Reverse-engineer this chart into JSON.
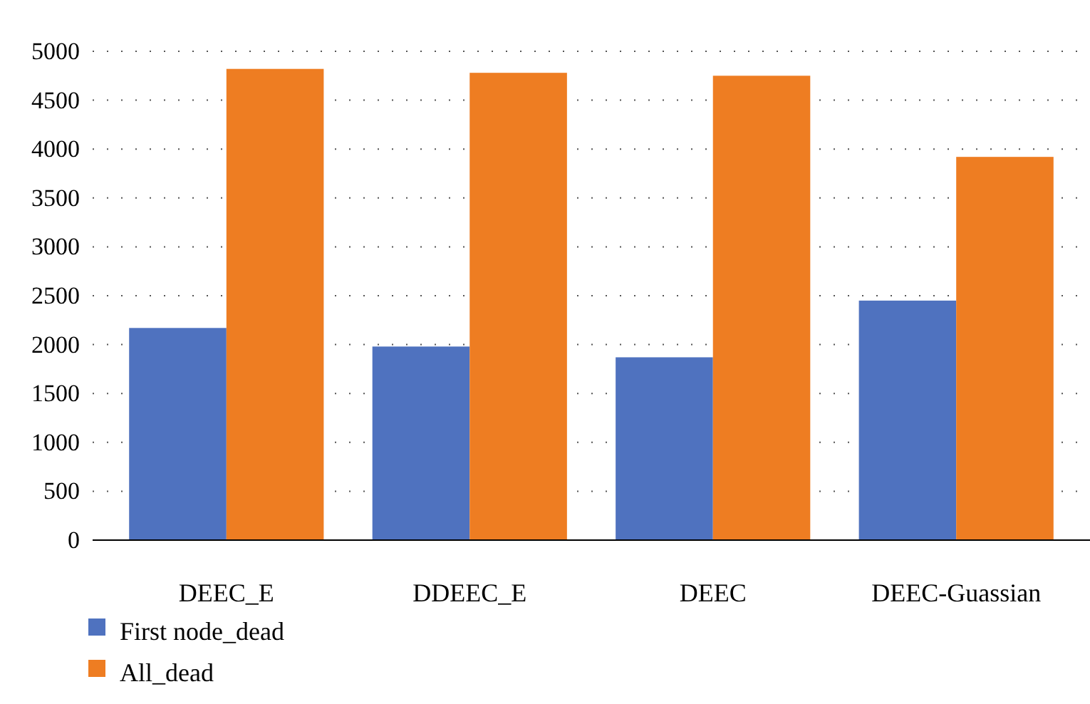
{
  "chart_data": {
    "type": "bar",
    "categories": [
      "DEEC_E",
      "DDEEC_E",
      "DEEC",
      "DEEC-Guassian"
    ],
    "series": [
      {
        "name": "First node_dead",
        "color": "#4f72bf",
        "values": [
          2170,
          1980,
          1870,
          2450
        ]
      },
      {
        "name": "All_dead",
        "color": "#ee7d22",
        "values": [
          4820,
          4780,
          4750,
          3920
        ]
      }
    ],
    "ylim": [
      0,
      5000
    ],
    "yticks": [
      0,
      500,
      1000,
      1500,
      2000,
      2500,
      3000,
      3500,
      4000,
      4500,
      5000
    ],
    "grid": "y",
    "legend": "bottom"
  }
}
